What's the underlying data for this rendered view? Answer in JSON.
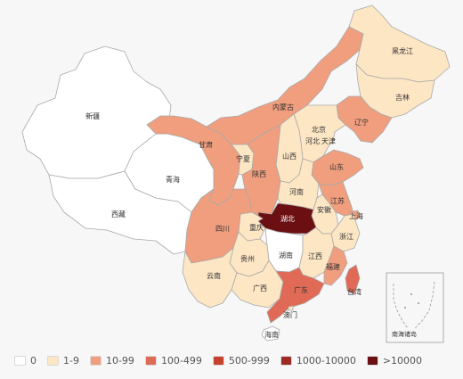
{
  "legend": [
    {
      "label": "0",
      "color": "#ffffff"
    },
    {
      "label": "1-9",
      "color": "#fde6c4"
    },
    {
      "label": "10-99",
      "color": "#f09e7e"
    },
    {
      "label": "100-499",
      "color": "#e06a55"
    },
    {
      "label": "500-999",
      "color": "#c8412f"
    },
    {
      "label": "1000-10000",
      "color": "#9c2b24"
    },
    {
      "label": ">10000",
      "color": "#6b0f12"
    }
  ],
  "provinces": {
    "xinjiang": {
      "name": "新疆",
      "level": 0
    },
    "xizang": {
      "name": "西藏",
      "level": 0
    },
    "qinghai": {
      "name": "青海",
      "level": 0
    },
    "gansu": {
      "name": "甘肃",
      "level": 2
    },
    "neimenggu": {
      "name": "内蒙古",
      "level": 2
    },
    "heilongjiang": {
      "name": "黑龙江",
      "level": 1
    },
    "jilin": {
      "name": "吉林",
      "level": 1
    },
    "liaoning": {
      "name": "辽宁",
      "level": 2
    },
    "beijing": {
      "name": "北京",
      "level": 2
    },
    "tianjin": {
      "name": "天津",
      "level": 1
    },
    "hebei": {
      "name": "河北",
      "level": 1
    },
    "shanxi": {
      "name": "山西",
      "level": 1
    },
    "ningxia": {
      "name": "宁夏",
      "level": 1
    },
    "shaanxi": {
      "name": "陕西",
      "level": 2
    },
    "shandong": {
      "name": "山东",
      "level": 2
    },
    "henan": {
      "name": "河南",
      "level": 1
    },
    "jiangsu": {
      "name": "江苏",
      "level": 2
    },
    "anhui": {
      "name": "安徽",
      "level": 1
    },
    "shanghai": {
      "name": "上海",
      "level": 2
    },
    "hubei": {
      "name": "湖北",
      "level": 6
    },
    "chongqing": {
      "name": "重庆",
      "level": 1
    },
    "sichuan": {
      "name": "四川",
      "level": 2
    },
    "zhejiang": {
      "name": "浙江",
      "level": 1
    },
    "hunan": {
      "name": "湖南",
      "level": 0
    },
    "jiangxi": {
      "name": "江西",
      "level": 1
    },
    "guizhou": {
      "name": "贵州",
      "level": 1
    },
    "yunnan": {
      "name": "云南",
      "level": 1
    },
    "fujian": {
      "name": "福建",
      "level": 2
    },
    "guangxi": {
      "name": "广西",
      "level": 1
    },
    "guangdong": {
      "name": "广东",
      "level": 3
    },
    "aomen": {
      "name": "澳门",
      "level": 1
    },
    "taiwan": {
      "name": "台湾",
      "level": 3
    },
    "hainan": {
      "name": "海南",
      "level": 0
    }
  },
  "inset": {
    "label": "南海诸岛"
  }
}
